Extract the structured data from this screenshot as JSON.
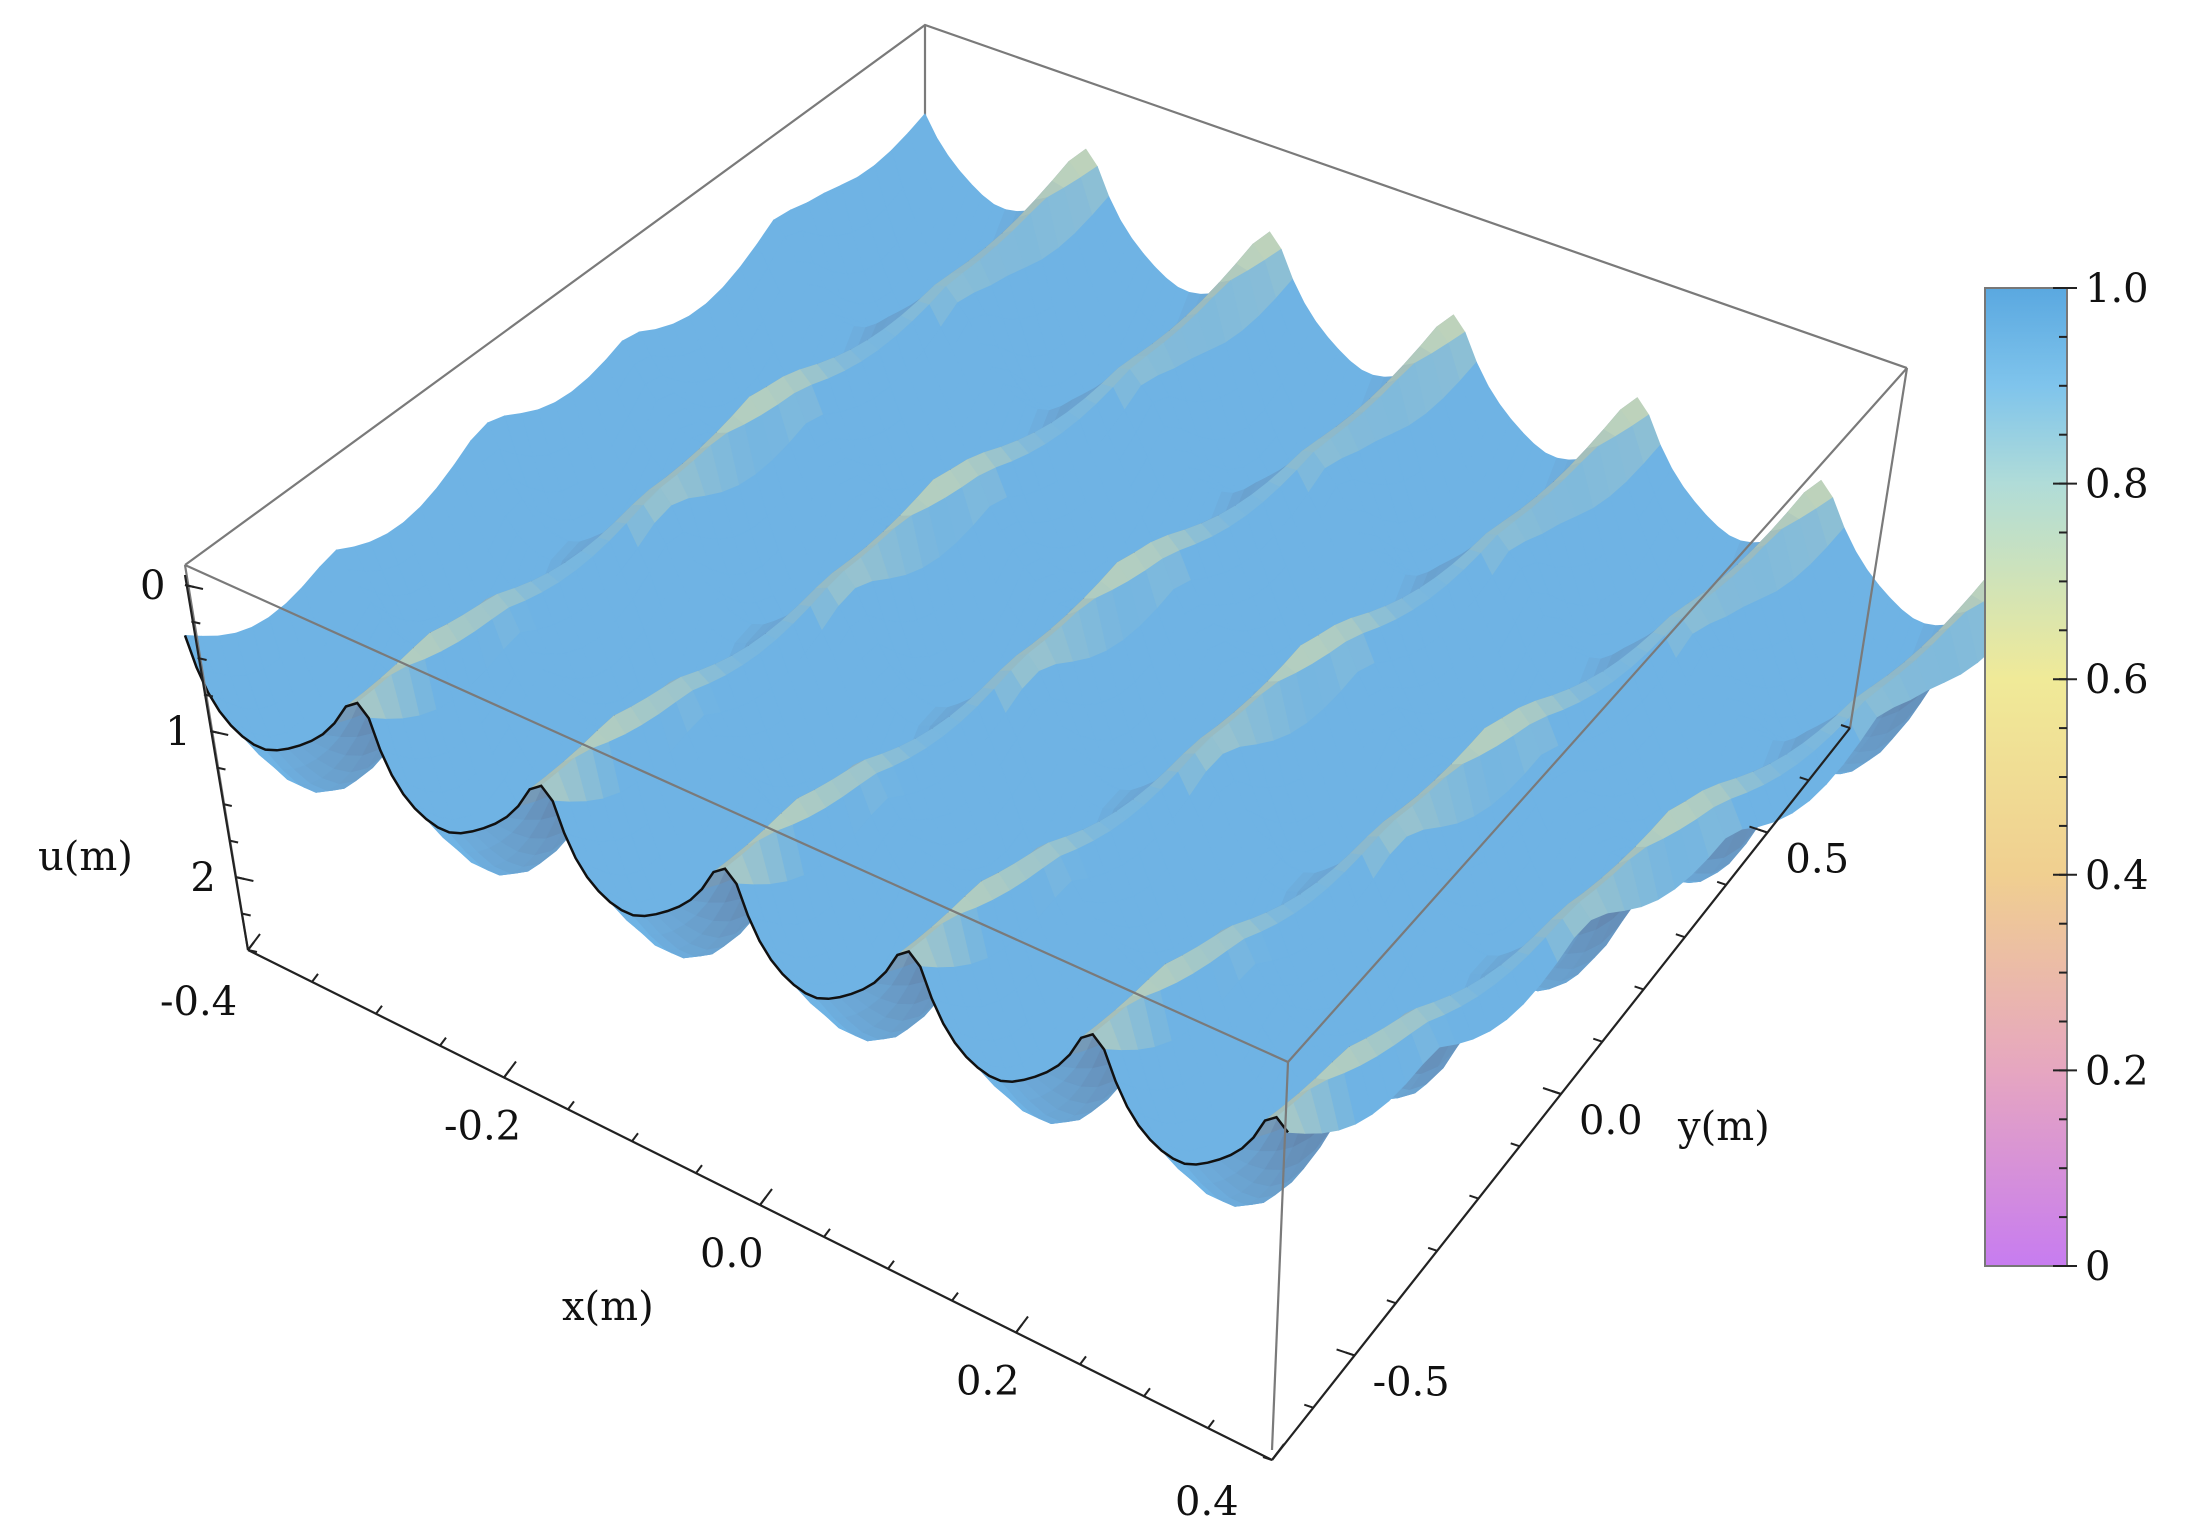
{
  "chart_data": {
    "type": "surface3d",
    "function_description": "",
    "x_axis": {
      "label": "x(m)",
      "ticks": [
        "-0.4",
        "-0.2",
        "0.0",
        "0.2",
        "0.4"
      ],
      "range": [
        -0.4,
        0.4
      ]
    },
    "y_axis": {
      "label": "y(m)",
      "ticks": [
        "-0.5",
        "0.0",
        "0.5"
      ],
      "range": [
        -0.7,
        0.7
      ]
    },
    "z_axis": {
      "label": "u(m)",
      "ticks": [
        "0",
        "1",
        "2"
      ],
      "range": [
        0,
        2.5
      ],
      "reversed": true
    },
    "legend": {
      "type": "colorbar",
      "placement": "right",
      "ticks": [
        "0",
        "0.2",
        "0.4",
        "0.6",
        "0.8",
        "1.0"
      ],
      "range": [
        0,
        1
      ],
      "colors": [
        "#c77cf0",
        "#e6a6b8",
        "#f0cf90",
        "#f0ea98",
        "#b8e0d8",
        "#7fc4ec",
        "#5aa8e0"
      ]
    },
    "surface_colors": {
      "low": "#6fb3e4",
      "mid": "#f0e6a0",
      "high": "#c090e8",
      "dark": "#55526e"
    },
    "x_lobes": 6,
    "y_ridges": 5
  }
}
